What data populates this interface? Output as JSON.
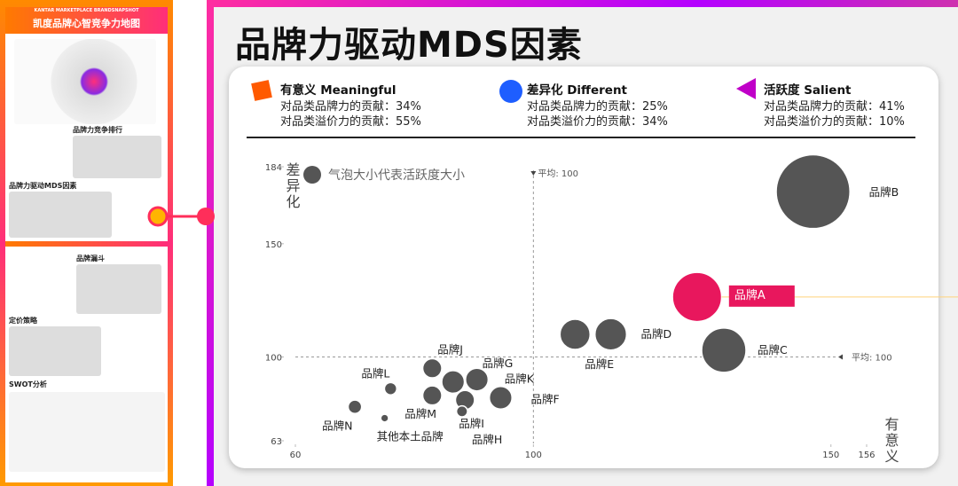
{
  "sidebar": {
    "brand": "KANTAR MARKETPLACE BRANDSNAPSHOT",
    "heading": "凯度品牌心智竞争力地图",
    "sections": [
      "品牌力竞争排行",
      "品牌力驱动MDS因素",
      "品牌漏斗",
      "定价策略",
      "SWOT分析"
    ]
  },
  "title": "品牌力驱动MDS因素",
  "legend": [
    {
      "name": "有意义 Meaningful",
      "color": "#ff5a00",
      "shape": "square",
      "lines": [
        "对品类品牌力的贡献：34%",
        "对品类溢价力的贡献：55%"
      ]
    },
    {
      "name": "差异化 Different",
      "color": "#1e5eff",
      "shape": "circle",
      "lines": [
        "对品类品牌力的贡献：25%",
        "对品类溢价力的贡献：34%"
      ]
    },
    {
      "name": "活跃度 Salient",
      "color": "#c000c8",
      "shape": "triangle",
      "lines": [
        "对品类品牌力的贡献：41%",
        "对品类溢价力的贡献：10%"
      ]
    }
  ],
  "chart_data": {
    "type": "bubble",
    "x_label": "有意义",
    "y_label": "差异化",
    "size_note": "气泡大小代表活跃度大小",
    "categories": [
      "品牌B",
      "品牌A",
      "品牌C",
      "品牌D",
      "品牌E",
      "品牌J",
      "品牌G",
      "品牌K",
      "品牌F",
      "品牌M",
      "品牌I",
      "品牌L",
      "品牌N",
      "品牌H",
      "其他本土品牌"
    ],
    "x": [
      147,
      127.5,
      132,
      113,
      107,
      83,
      90.5,
      86.5,
      94.5,
      83,
      88.5,
      76,
      70,
      88,
      75
    ],
    "y": [
      173,
      126.5,
      103,
      110,
      110,
      95,
      90,
      89,
      82,
      83,
      81,
      86,
      78,
      76,
      73
    ],
    "sizes": [
      180,
      80,
      65,
      33,
      30,
      12,
      17,
      17,
      17,
      12,
      12,
      5,
      6,
      4,
      2
    ],
    "colors": [
      "#555555",
      "#e8175d",
      "#555555",
      "#555555",
      "#555555",
      "#555555",
      "#555555",
      "#555555",
      "#555555",
      "#555555",
      "#555555",
      "#555555",
      "#555555",
      "#555555",
      "#555555"
    ],
    "xlim": [
      60,
      156
    ],
    "ylim": [
      63,
      184
    ],
    "xticks": [
      60,
      100,
      150,
      156
    ],
    "yticks": [
      63,
      100,
      150,
      184
    ],
    "x_average": {
      "value": 100,
      "label": "平均: 100"
    },
    "y_average": {
      "value": 100,
      "label": "平均: 100"
    }
  }
}
